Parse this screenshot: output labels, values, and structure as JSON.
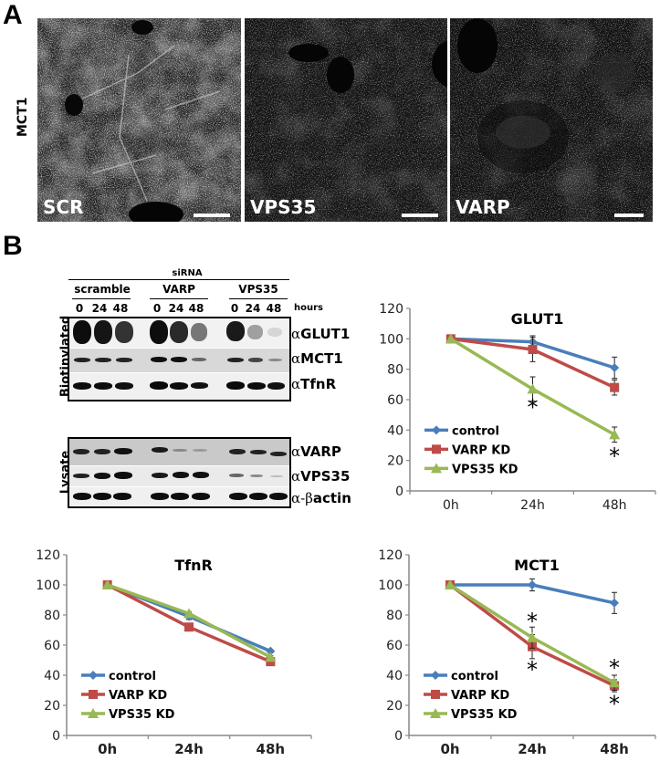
{
  "figure": {
    "panel_a": {
      "letter": "A",
      "row_label": "MCT1",
      "images": [
        {
          "label": "SCR",
          "brightness": "high"
        },
        {
          "label": "VPS35",
          "brightness": "low"
        },
        {
          "label": "VARP",
          "brightness": "low"
        }
      ]
    },
    "panel_b": {
      "letter": "B",
      "blot": {
        "siRNA_label": "siRNA",
        "groups": [
          {
            "name": "scramble",
            "lanes": [
              "0",
              "24",
              "48"
            ]
          },
          {
            "name": "VARP",
            "lanes": [
              "0",
              "24",
              "48"
            ]
          },
          {
            "name": "VPS35",
            "lanes": [
              "0",
              "24",
              "48"
            ]
          }
        ],
        "hours_label": "hours",
        "biotinylated_label": "Biotinylated",
        "lysate_label": "Lysate",
        "biotinylated_rows": [
          {
            "alpha": "α",
            "name": "GLUT1"
          },
          {
            "alpha": "α",
            "name": "MCT1"
          },
          {
            "alpha": "α",
            "name": "TfnR"
          }
        ],
        "lysate_rows": [
          {
            "alpha": "α",
            "name": "VARP"
          },
          {
            "alpha": "α",
            "name": "VPS35"
          },
          {
            "alpha": "α-β",
            "name": "actin"
          }
        ]
      }
    }
  },
  "chart_data": [
    {
      "type": "line",
      "title": "GLUT1",
      "categories": [
        "0h",
        "24h",
        "48h"
      ],
      "ylim": [
        0,
        120
      ],
      "yticks": [
        0,
        20,
        40,
        60,
        80,
        100,
        120
      ],
      "xlabel": "",
      "ylabel": "",
      "grid": false,
      "legend_position": "lower-left inside",
      "series": [
        {
          "name": "control",
          "color": "#4a7ebb",
          "marker": "diamond",
          "values": [
            100,
            98,
            81
          ],
          "errors": [
            0,
            4,
            7
          ]
        },
        {
          "name": "VARP KD",
          "color": "#be4b48",
          "marker": "square",
          "values": [
            100,
            93,
            68
          ],
          "errors": [
            0,
            8,
            5
          ]
        },
        {
          "name": "VPS35 KD",
          "color": "#98b954",
          "marker": "triangle",
          "values": [
            100,
            67,
            37
          ],
          "errors": [
            0,
            8,
            5
          ]
        }
      ],
      "annotations": [
        {
          "text": "*",
          "x": "24h",
          "y": 56
        },
        {
          "text": "*",
          "x": "48h",
          "y": 24
        }
      ]
    },
    {
      "type": "line",
      "title": "TfnR",
      "categories": [
        "0h",
        "24h",
        "48h"
      ],
      "ylim": [
        0,
        120
      ],
      "yticks": [
        0,
        20,
        40,
        60,
        80,
        100,
        120
      ],
      "xlabel": "",
      "ylabel": "",
      "grid": false,
      "legend_position": "lower-left inside",
      "series": [
        {
          "name": "control",
          "color": "#4a7ebb",
          "marker": "diamond",
          "values": [
            100,
            79,
            56
          ],
          "errors": [
            0,
            2,
            1
          ]
        },
        {
          "name": "VARP KD",
          "color": "#be4b48",
          "marker": "square",
          "values": [
            100,
            72,
            49
          ],
          "errors": [
            0,
            1,
            1
          ]
        },
        {
          "name": "VPS35 KD",
          "color": "#98b954",
          "marker": "triangle",
          "values": [
            100,
            81,
            52
          ],
          "errors": [
            0,
            1,
            1
          ]
        }
      ],
      "annotations": []
    },
    {
      "type": "line",
      "title": "MCT1",
      "categories": [
        "0h",
        "24h",
        "48h"
      ],
      "ylim": [
        0,
        120
      ],
      "yticks": [
        0,
        20,
        40,
        60,
        80,
        100,
        120
      ],
      "xlabel": "",
      "ylabel": "",
      "grid": false,
      "legend_position": "lower-left inside",
      "series": [
        {
          "name": "control",
          "color": "#4a7ebb",
          "marker": "diamond",
          "values": [
            100,
            100,
            88
          ],
          "errors": [
            0,
            4,
            7
          ]
        },
        {
          "name": "VARP KD",
          "color": "#be4b48",
          "marker": "square",
          "values": [
            100,
            59,
            33
          ],
          "errors": [
            0,
            8,
            4
          ]
        },
        {
          "name": "VPS35 KD",
          "color": "#98b954",
          "marker": "triangle",
          "values": [
            100,
            65,
            35
          ],
          "errors": [
            0,
            7,
            5
          ]
        }
      ],
      "annotations": [
        {
          "text": "*",
          "x": "24h",
          "y": 77
        },
        {
          "text": "*",
          "x": "24h",
          "y": 45
        },
        {
          "text": "*",
          "x": "48h",
          "y": 46
        },
        {
          "text": "*",
          "x": "48h",
          "y": 22
        }
      ]
    }
  ]
}
